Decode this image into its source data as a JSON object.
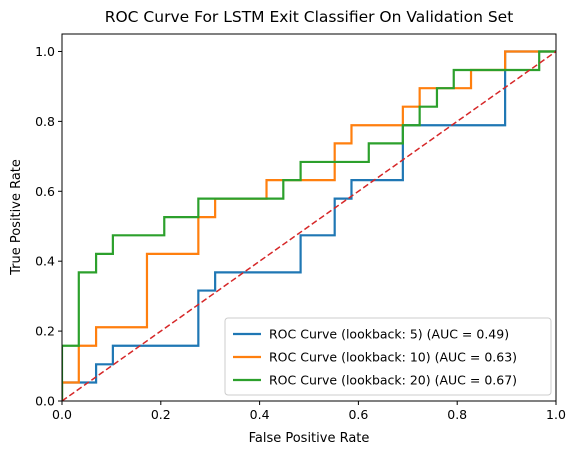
{
  "chart_data": {
    "type": "line",
    "title": "ROC Curve For LSTM Exit Classifier On Validation Set",
    "xlabel": "False Positive Rate",
    "ylabel": "True Positive Rate",
    "xlim": [
      0.0,
      1.0
    ],
    "ylim": [
      0.0,
      1.05
    ],
    "xticks": [
      "0.0",
      "0.2",
      "0.4",
      "0.6",
      "0.8",
      "1.0"
    ],
    "yticks": [
      "0.0",
      "0.2",
      "0.4",
      "0.6",
      "0.8",
      "1.0"
    ],
    "grid": false,
    "legend_position": "lower-right",
    "baseline": {
      "x": [
        0,
        1
      ],
      "y": [
        0,
        1
      ],
      "color": "#d62728",
      "style": "dashed"
    },
    "series": [
      {
        "name": "ROC Curve (lookback: 5) (AUC = 0.49)",
        "color": "#1f77b4",
        "x": [
          0.0,
          0.0,
          0.069,
          0.069,
          0.103,
          0.103,
          0.276,
          0.276,
          0.31,
          0.31,
          0.483,
          0.483,
          0.552,
          0.552,
          0.586,
          0.586,
          0.69,
          0.69,
          0.897,
          0.897,
          1.0
        ],
        "y": [
          0.0,
          0.053,
          0.053,
          0.105,
          0.105,
          0.158,
          0.158,
          0.316,
          0.316,
          0.368,
          0.368,
          0.474,
          0.474,
          0.579,
          0.579,
          0.632,
          0.632,
          0.789,
          0.789,
          1.0,
          1.0
        ]
      },
      {
        "name": "ROC Curve (lookback: 10) (AUC = 0.63)",
        "color": "#ff7f0e",
        "x": [
          0.0,
          0.0,
          0.034,
          0.034,
          0.069,
          0.069,
          0.172,
          0.172,
          0.276,
          0.276,
          0.31,
          0.31,
          0.414,
          0.414,
          0.552,
          0.552,
          0.586,
          0.586,
          0.621,
          0.621,
          0.69,
          0.69,
          0.724,
          0.724,
          0.828,
          0.828,
          0.897,
          0.897,
          1.0
        ],
        "y": [
          0.0,
          0.053,
          0.053,
          0.158,
          0.158,
          0.211,
          0.211,
          0.421,
          0.421,
          0.526,
          0.526,
          0.579,
          0.579,
          0.632,
          0.632,
          0.737,
          0.737,
          0.789,
          0.789,
          0.789,
          0.789,
          0.842,
          0.842,
          0.895,
          0.895,
          0.947,
          0.947,
          1.0,
          1.0
        ]
      },
      {
        "name": "ROC Curve (lookback: 20) (AUC = 0.67)",
        "color": "#2ca02c",
        "x": [
          0.0,
          0.0,
          0.034,
          0.034,
          0.069,
          0.069,
          0.103,
          0.103,
          0.207,
          0.207,
          0.276,
          0.276,
          0.448,
          0.448,
          0.483,
          0.483,
          0.621,
          0.621,
          0.69,
          0.69,
          0.724,
          0.724,
          0.759,
          0.759,
          0.793,
          0.793,
          0.966,
          0.966,
          1.0
        ],
        "y": [
          0.0,
          0.158,
          0.158,
          0.368,
          0.368,
          0.421,
          0.421,
          0.474,
          0.474,
          0.526,
          0.526,
          0.579,
          0.579,
          0.632,
          0.632,
          0.684,
          0.684,
          0.737,
          0.737,
          0.789,
          0.789,
          0.842,
          0.842,
          0.895,
          0.895,
          0.947,
          0.947,
          1.0,
          1.0
        ]
      }
    ]
  }
}
